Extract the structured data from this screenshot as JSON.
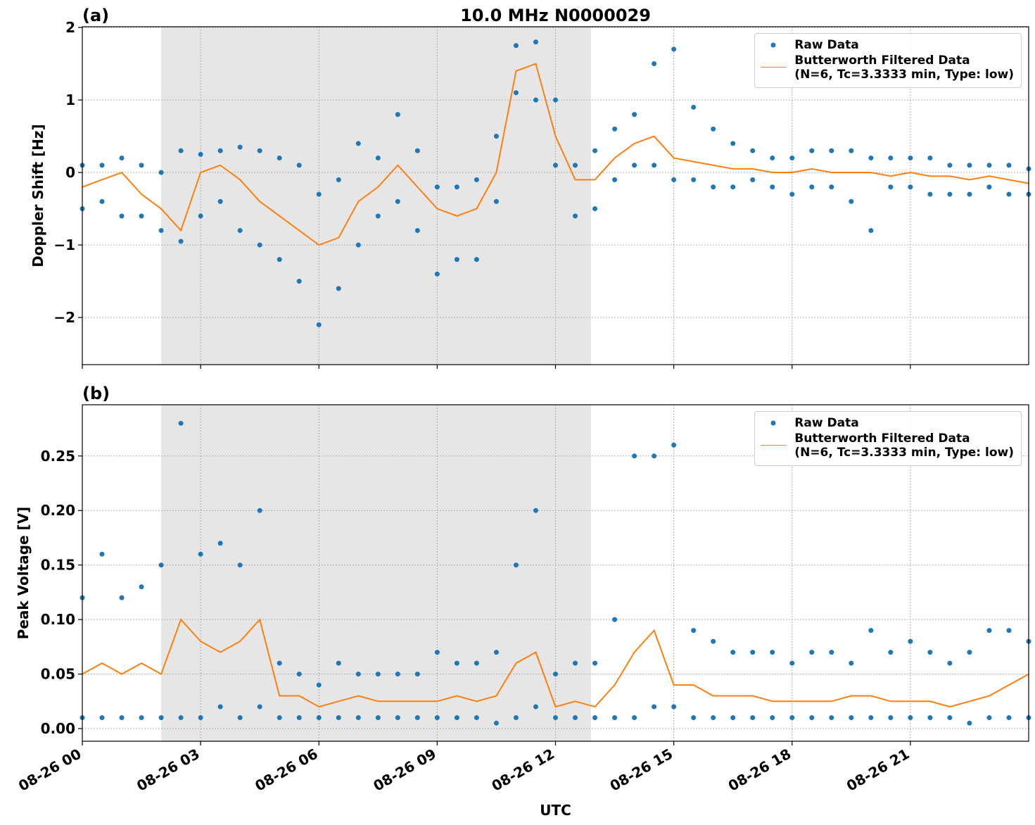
{
  "chart_data": [
    {
      "type": "line",
      "title": "10.0 MHz N0000029",
      "panel_label": "(a)",
      "ylabel": "Doppler Shift [Hz]",
      "xlim": [
        0,
        24
      ],
      "ylim": [
        -2.65,
        2.01
      ],
      "yticks": [
        {
          "value": -2,
          "label": "−2"
        },
        {
          "value": -1,
          "label": "−1"
        },
        0,
        1,
        2
      ],
      "grid": true,
      "legend": "upper right",
      "shaded_span": [
        2.0,
        12.9
      ],
      "shade_color": "#e6e6e6",
      "series": [
        {
          "name": "Raw Data",
          "type": "scatter",
          "color": "#1f77b4",
          "x": [
            0,
            0,
            0.5,
            0.5,
            1,
            1,
            1.5,
            1.5,
            2,
            2,
            2.5,
            2.5,
            3,
            3,
            3.5,
            3.5,
            4,
            4,
            4.5,
            4.5,
            5,
            5,
            5.5,
            5.5,
            6,
            6,
            6.5,
            6.5,
            7,
            7,
            7.5,
            7.5,
            8,
            8,
            8.5,
            8.5,
            9,
            9,
            9.5,
            9.5,
            10,
            10,
            10.5,
            10.5,
            11,
            11,
            11.5,
            11.5,
            12,
            12,
            12.5,
            12.5,
            13,
            13,
            13.5,
            13.5,
            14,
            14,
            14.5,
            14.5,
            15,
            15,
            15.5,
            15.5,
            16,
            16,
            16.5,
            16.5,
            17,
            17,
            17.5,
            17.5,
            18,
            18,
            18.5,
            18.5,
            19,
            19,
            19.5,
            19.5,
            20,
            20,
            20.5,
            20.5,
            21,
            21,
            21.5,
            21.5,
            22,
            22,
            22.5,
            22.5,
            23,
            23,
            23.5,
            23.5,
            24,
            24
          ],
          "values": [
            0.1,
            -0.5,
            0.1,
            -0.4,
            0.2,
            -0.6,
            0.1,
            -0.6,
            0,
            -0.8,
            0.3,
            -0.95,
            0.25,
            -0.6,
            0.3,
            -0.4,
            0.35,
            -0.8,
            0.3,
            -1.0,
            0.2,
            -1.2,
            0.1,
            -1.5,
            -0.3,
            -2.1,
            -0.1,
            -1.6,
            0.4,
            -1.0,
            0.2,
            -0.6,
            0.8,
            -0.4,
            0.3,
            -0.8,
            -0.2,
            -1.4,
            -0.2,
            -1.2,
            -0.1,
            -1.2,
            0.5,
            -0.4,
            1.75,
            1.1,
            1.8,
            1.0,
            1.0,
            0.1,
            0.1,
            -0.6,
            0.3,
            -0.5,
            0.6,
            -0.1,
            0.8,
            0.1,
            1.5,
            0.1,
            1.7,
            -0.1,
            0.9,
            -0.1,
            0.6,
            -0.2,
            0.4,
            -0.2,
            0.3,
            -0.1,
            0.2,
            -0.2,
            0.2,
            -0.3,
            0.3,
            -0.2,
            0.3,
            -0.2,
            0.3,
            -0.4,
            0.2,
            -0.8,
            0.2,
            -0.2,
            0.2,
            -0.2,
            0.2,
            -0.3,
            0.1,
            -0.3,
            0.1,
            -0.3,
            0.1,
            -0.2,
            0.1,
            -0.3,
            0.05,
            -0.3
          ]
        },
        {
          "name": "Butterworth Filtered Data\n(N=6, Tc=3.3333 min, Type: low)",
          "type": "line",
          "color": "#ff7f0e",
          "x": [
            0,
            0.5,
            1,
            1.5,
            2,
            2.5,
            3,
            3.5,
            4,
            4.5,
            5,
            5.5,
            6,
            6.5,
            7,
            7.5,
            8,
            8.5,
            9,
            9.5,
            10,
            10.5,
            11,
            11.5,
            12,
            12.5,
            13,
            13.5,
            14,
            14.5,
            15,
            15.5,
            16,
            16.5,
            17,
            17.5,
            18,
            18.5,
            19,
            19.5,
            20,
            20.5,
            21,
            21.5,
            22,
            22.5,
            23,
            23.5,
            24
          ],
          "values": [
            -0.2,
            -0.1,
            0,
            -0.3,
            -0.5,
            -0.8,
            0,
            0.1,
            -0.1,
            -0.4,
            -0.6,
            -0.8,
            -1.0,
            -0.9,
            -0.4,
            -0.2,
            0.1,
            -0.2,
            -0.5,
            -0.6,
            -0.5,
            0.0,
            1.4,
            1.5,
            0.5,
            -0.1,
            -0.1,
            0.2,
            0.4,
            0.5,
            0.2,
            0.15,
            0.1,
            0.05,
            0.05,
            0,
            0,
            0.05,
            0,
            0,
            0,
            -0.05,
            0,
            -0.05,
            -0.05,
            -0.1,
            -0.05,
            -0.1,
            -0.15
          ]
        }
      ]
    },
    {
      "type": "line",
      "panel_label": "(b)",
      "ylabel": "Peak Voltage [V]",
      "xlabel": "UTC",
      "xlim": [
        0,
        24
      ],
      "ylim": [
        -0.0116,
        0.297
      ],
      "xticks": [
        {
          "value": 0,
          "label": "08-26 00"
        },
        {
          "value": 3,
          "label": "08-26 03"
        },
        {
          "value": 6,
          "label": "08-26 06"
        },
        {
          "value": 9,
          "label": "08-26 09"
        },
        {
          "value": 12,
          "label": "08-26 12"
        },
        {
          "value": 15,
          "label": "08-26 15"
        },
        {
          "value": 18,
          "label": "08-26 18"
        },
        {
          "value": 21,
          "label": "08-26 21"
        }
      ],
      "yticks": [
        {
          "value": 0,
          "label": "0.00"
        },
        0.05,
        {
          "value": 0.1,
          "label": "0.10"
        },
        0.15,
        {
          "value": 0.2,
          "label": "0.20"
        },
        0.25
      ],
      "grid": true,
      "legend": "upper right",
      "shaded_span": [
        2.0,
        12.9
      ],
      "shade_color": "#e6e6e6",
      "series": [
        {
          "name": "Raw Data",
          "type": "scatter",
          "color": "#1f77b4",
          "x": [
            0,
            0,
            0.5,
            0.5,
            1,
            1,
            1.5,
            1.5,
            2,
            2,
            2.5,
            2.5,
            3,
            3,
            3.5,
            3.5,
            4,
            4,
            4.5,
            4.5,
            5,
            5,
            5.5,
            5.5,
            6,
            6,
            6.5,
            6.5,
            7,
            7,
            7.5,
            7.5,
            8,
            8,
            8.5,
            8.5,
            9,
            9,
            9.5,
            9.5,
            10,
            10,
            10.5,
            10.5,
            11,
            11,
            11.5,
            11.5,
            12,
            12,
            12.5,
            12.5,
            13,
            13,
            13.5,
            13.5,
            14,
            14,
            14.5,
            14.5,
            15,
            15,
            15.5,
            15.5,
            16,
            16,
            16.5,
            16.5,
            17,
            17,
            17.5,
            17.5,
            18,
            18,
            18.5,
            18.5,
            19,
            19,
            19.5,
            19.5,
            20,
            20,
            20.5,
            20.5,
            21,
            21,
            21.5,
            21.5,
            22,
            22,
            22.5,
            22.5,
            23,
            23,
            23.5,
            23.5,
            24,
            24
          ],
          "values": [
            0.12,
            0.01,
            0.16,
            0.01,
            0.12,
            0.01,
            0.13,
            0.01,
            0.15,
            0.01,
            0.28,
            0.01,
            0.16,
            0.01,
            0.17,
            0.02,
            0.15,
            0.01,
            0.2,
            0.02,
            0.06,
            0.01,
            0.05,
            0.01,
            0.04,
            0.01,
            0.06,
            0.01,
            0.05,
            0.01,
            0.05,
            0.01,
            0.05,
            0.01,
            0.05,
            0.01,
            0.07,
            0.01,
            0.06,
            0.01,
            0.06,
            0.01,
            0.07,
            0.005,
            0.15,
            0.01,
            0.2,
            0.02,
            0.05,
            0.01,
            0.06,
            0.01,
            0.06,
            0.01,
            0.1,
            0.01,
            0.25,
            0.01,
            0.25,
            0.02,
            0.26,
            0.02,
            0.09,
            0.01,
            0.08,
            0.01,
            0.07,
            0.01,
            0.07,
            0.01,
            0.07,
            0.01,
            0.06,
            0.01,
            0.07,
            0.01,
            0.07,
            0.01,
            0.06,
            0.01,
            0.09,
            0.01,
            0.07,
            0.01,
            0.08,
            0.01,
            0.07,
            0.01,
            0.06,
            0.01,
            0.07,
            0.005,
            0.09,
            0.01,
            0.09,
            0.01,
            0.08,
            0.01
          ]
        },
        {
          "name": "Butterworth Filtered Data\n(N=6, Tc=3.3333 min, Type: low)",
          "type": "line",
          "color": "#ff7f0e",
          "x": [
            0,
            0.5,
            1,
            1.5,
            2,
            2.5,
            3,
            3.5,
            4,
            4.5,
            5,
            5.5,
            6,
            6.5,
            7,
            7.5,
            8,
            8.5,
            9,
            9.5,
            10,
            10.5,
            11,
            11.5,
            12,
            12.5,
            13,
            13.5,
            14,
            14.5,
            15,
            15.5,
            16,
            16.5,
            17,
            17.5,
            18,
            18.5,
            19,
            19.5,
            20,
            20.5,
            21,
            21.5,
            22,
            22.5,
            23,
            23.5,
            24
          ],
          "values": [
            0.05,
            0.06,
            0.05,
            0.06,
            0.05,
            0.1,
            0.08,
            0.07,
            0.08,
            0.1,
            0.03,
            0.03,
            0.02,
            0.025,
            0.03,
            0.025,
            0.025,
            0.025,
            0.025,
            0.03,
            0.025,
            0.03,
            0.06,
            0.07,
            0.02,
            0.025,
            0.02,
            0.04,
            0.07,
            0.09,
            0.04,
            0.04,
            0.03,
            0.03,
            0.03,
            0.025,
            0.025,
            0.025,
            0.025,
            0.03,
            0.03,
            0.025,
            0.025,
            0.025,
            0.02,
            0.025,
            0.03,
            0.04,
            0.05
          ]
        }
      ]
    }
  ]
}
